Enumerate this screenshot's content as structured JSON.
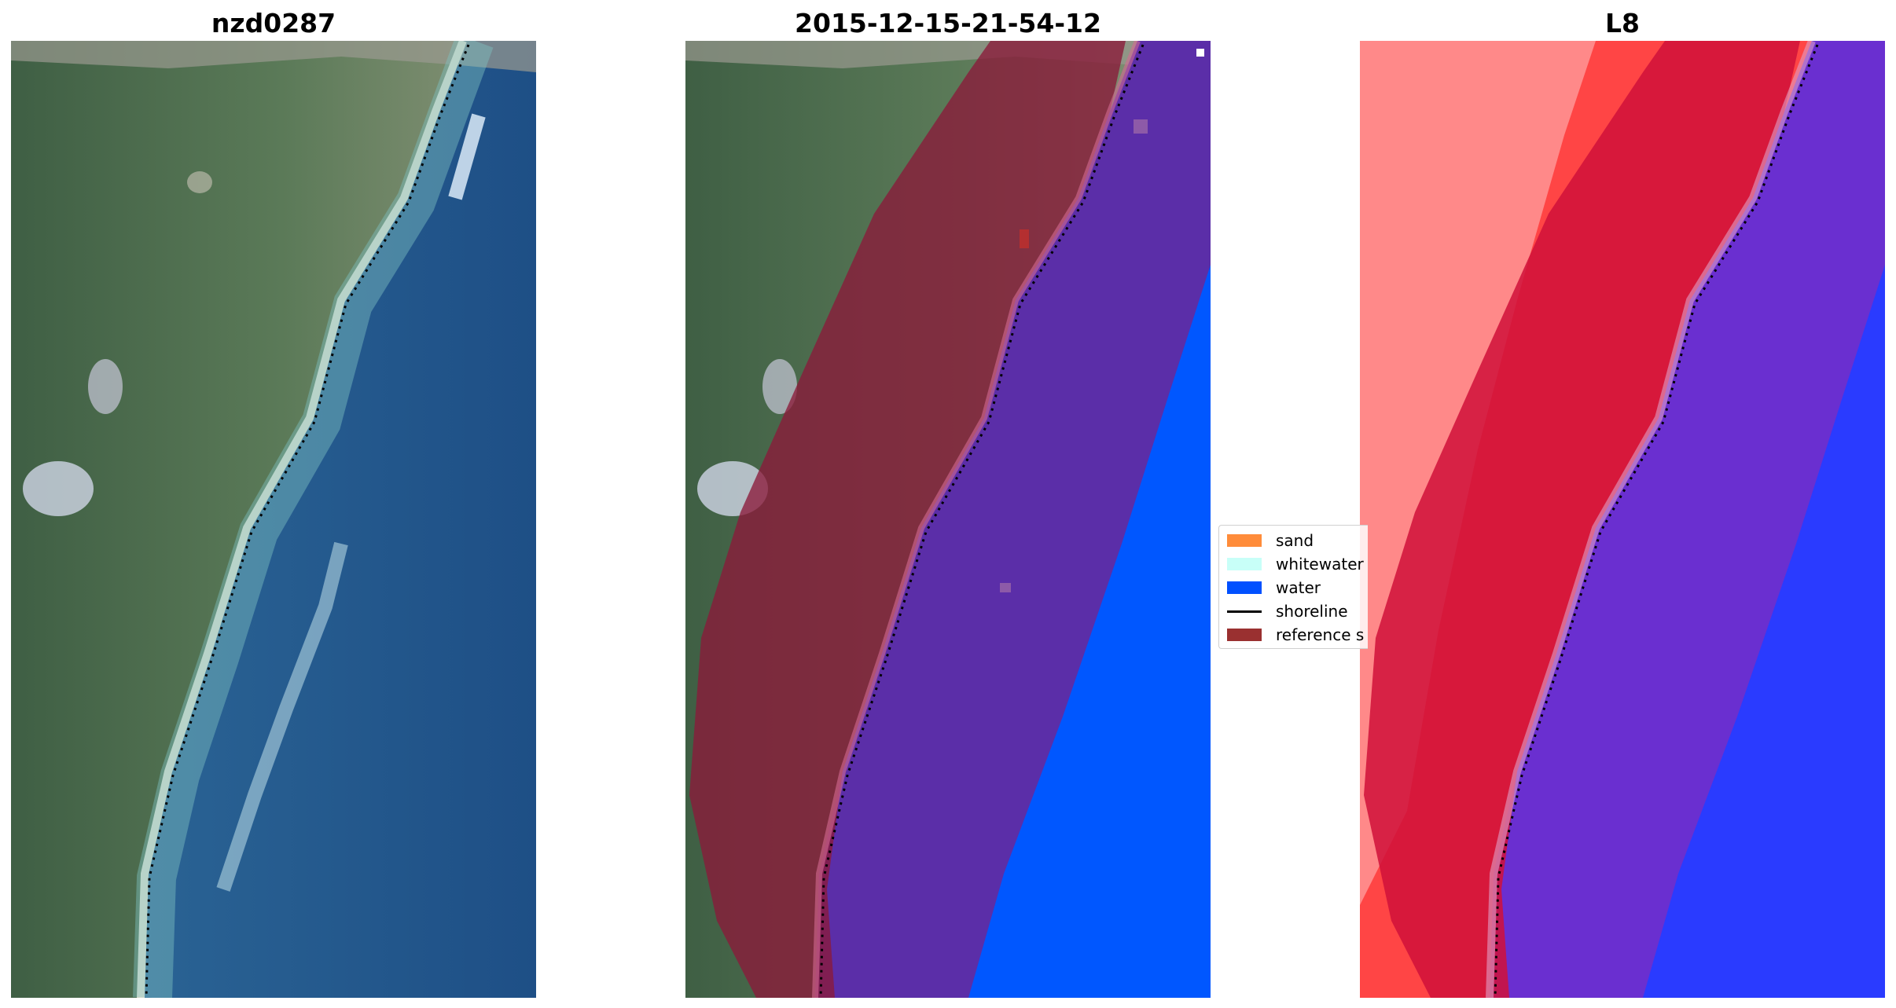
{
  "panels": [
    {
      "title": "nzd0287",
      "kind": "rgb-image"
    },
    {
      "title": "2015-12-15-21-54-12",
      "kind": "classified-overlay"
    },
    {
      "title": "L8",
      "kind": "index-map"
    }
  ],
  "legend": {
    "placement": "center-left of third panel",
    "items": [
      {
        "label": "sand",
        "type": "patch",
        "color": "#ff8c3a"
      },
      {
        "label": "whitewater",
        "type": "patch",
        "color": "#c8fff8"
      },
      {
        "label": "water",
        "type": "patch",
        "color": "#0050ff"
      },
      {
        "label": "shoreline",
        "type": "line",
        "color": "#000000"
      },
      {
        "label": "reference s",
        "type": "patch",
        "color": "#9a3030"
      }
    ]
  },
  "colors": {
    "land": "#4c6b4a",
    "ocean": "#1f4f8c",
    "water_class": "#0057ff",
    "reference_overlay": "#8b1a3a",
    "index_red": "#ff2a2a",
    "index_blue": "#2030ff"
  }
}
